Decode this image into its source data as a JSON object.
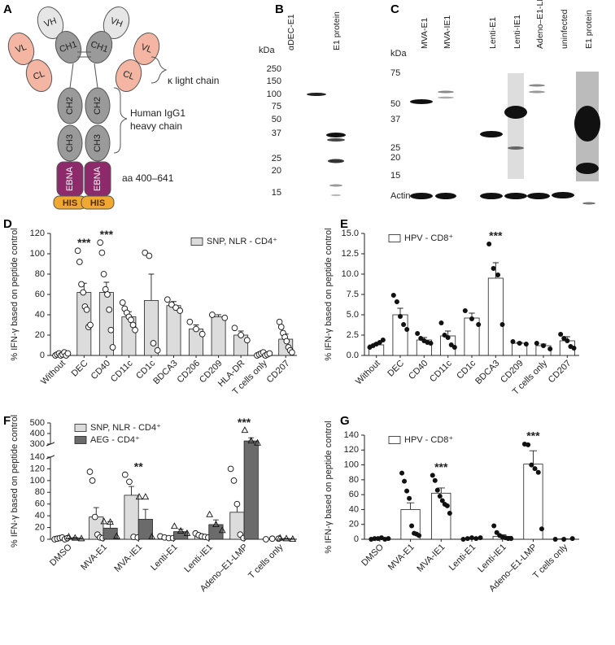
{
  "diagram": {
    "panel_label": "A",
    "domains": {
      "vh": "VH",
      "vl": "VL",
      "ch1": "CH1",
      "cl": "CL",
      "ch2": "CH2",
      "ch3": "CH3",
      "ebna": "EBNA",
      "his": "HIS"
    },
    "light_chain": "κ light chain",
    "heavy_chain": [
      "Human IgG1",
      "heavy chain"
    ],
    "fragment": "aa 400–641"
  },
  "blot_b": {
    "panel_label": "B",
    "unit": "kDa",
    "markers": [
      250,
      150,
      100,
      75,
      50,
      37,
      25,
      20,
      15
    ],
    "lanes": [
      "αDEC-E1",
      "E1 protein"
    ]
  },
  "blot_c": {
    "panel_label": "C",
    "unit": "kDa",
    "markers": [
      75,
      50,
      37,
      25,
      20,
      15
    ],
    "loading": "Actin",
    "lanes": [
      "MVA-E1",
      "MVA-IE1",
      "Lenti-E1",
      "Lenti-IE1",
      "Adeno–E1-LMP",
      "uninfected",
      "E1 protein"
    ]
  },
  "chart_data": [
    {
      "type": "bar",
      "panel_label": "D",
      "y_label": "% IFN-γ based on peptide control",
      "categories": [
        "Without",
        "DEC",
        "CD40",
        "CD11c",
        "CD1c",
        "BDCA3",
        "CD206",
        "CD209",
        "HLA-DR",
        "T cells only",
        "CD207"
      ],
      "series": [
        {
          "name": "SNP, NLR - CD4⁺",
          "color": "#dcdcdc",
          "marker": "open-circle",
          "values": [
            1,
            62,
            62,
            38,
            54,
            49,
            26,
            38,
            20,
            2,
            16
          ],
          "errors": [
            1,
            9,
            10,
            5,
            26,
            4,
            4,
            2,
            4,
            1,
            5
          ],
          "points": [
            [
              0,
              1,
              2,
              0,
              1,
              3,
              0,
              2
            ],
            [
              103,
              92,
              70,
              62,
              48,
              45,
              28,
              30
            ],
            [
              111,
              101,
              80,
              65,
              60,
              45,
              25,
              8
            ],
            [
              52,
              46,
              42,
              38,
              35,
              30,
              25
            ],
            [
              101,
              98,
              12,
              5
            ],
            [
              55,
              50,
              47,
              44
            ],
            [
              33,
              26,
              21
            ],
            [
              40,
              37
            ],
            [
              27,
              20,
              15
            ],
            [
              0,
              1,
              2,
              3,
              0,
              1,
              2
            ],
            [
              33,
              28,
              22,
              18,
              14,
              8,
              5,
              3
            ]
          ]
        }
      ],
      "annotations": [
        {
          "text": "***",
          "category": "DEC"
        },
        {
          "text": "***",
          "category": "CD40"
        }
      ],
      "ylim": [
        0,
        120
      ],
      "yticks": [
        0,
        20,
        40,
        60,
        80,
        100,
        120
      ],
      "legend": "upper right"
    },
    {
      "type": "bar",
      "panel_label": "E",
      "y_label": "% IFN-γ based on peptide control",
      "categories": [
        "Without",
        "DEC",
        "CD40",
        "CD11c",
        "CD1c",
        "BDCA3",
        "CD209",
        "T cells only",
        "CD207"
      ],
      "series": [
        {
          "name": "HPV - CD8⁺",
          "color": "#ffffff",
          "marker": "filled-circle",
          "values": [
            1.3,
            5.0,
            1.9,
            2.4,
            4.6,
            9.5,
            1.5,
            1.2,
            1.8
          ],
          "errors": [
            0.2,
            0.8,
            0.3,
            0.6,
            0.6,
            1.9,
            0.1,
            0.2,
            0.5
          ],
          "points": [
            [
              1.0,
              1.2,
              1.4,
              1.6,
              1.9
            ],
            [
              7.4,
              6.6,
              4.8,
              3.8,
              3.2
            ],
            [
              2.7,
              2.1,
              1.8,
              1.6,
              1.5
            ],
            [
              4.0,
              2.5,
              2.2,
              1.3,
              1.0
            ],
            [
              5.5,
              4.5,
              3.8
            ],
            [
              13.7,
              10.7,
              9.9,
              3.8
            ],
            [
              1.7,
              1.5,
              1.4
            ],
            [
              1.5,
              1.2,
              0.8
            ],
            [
              2.6,
              2.1,
              1.8,
              1.1,
              0.9
            ]
          ]
        }
      ],
      "annotations": [
        {
          "text": "***",
          "category": "BDCA3"
        }
      ],
      "ylim": [
        0,
        15
      ],
      "yticks": [
        {
          "value": 0,
          "label": "0.0"
        },
        2.5,
        {
          "value": 5,
          "label": "5.0"
        },
        7.5,
        {
          "value": 10,
          "label": "10.0"
        },
        12.5,
        {
          "value": 15,
          "label": "15.0"
        }
      ],
      "legend": "upper left"
    },
    {
      "type": "bar",
      "panel_label": "F",
      "y_label": "% IFN-γ based on peptide control",
      "categories": [
        "DMSO",
        "MVA-E1",
        "MVA-IE1",
        "Lenti-E1",
        "Lenti-IE1",
        "Adeno–E1-LMP",
        "T cells only"
      ],
      "series": [
        {
          "name": "SNP, NLR - CD4⁺",
          "color": "#dcdcdc",
          "marker": "open-circle",
          "values": [
            1,
            38,
            75,
            3,
            6,
            46,
            0
          ],
          "errors": [
            0.5,
            16,
            15,
            1,
            1,
            16,
            0.5
          ],
          "points": [
            [
              0,
              1,
              2,
              3,
              0,
              2
            ],
            [
              115,
              100,
              38,
              8,
              3,
              2
            ],
            [
              110,
              98,
              4,
              3
            ],
            [
              5,
              3,
              2,
              2
            ],
            [
              10,
              7,
              5,
              4,
              3
            ],
            [
              120,
              100,
              60,
              8,
              2
            ],
            [
              0,
              1,
              1
            ]
          ]
        },
        {
          "name": "AEG - CD4⁺",
          "color": "#6b6b6b",
          "marker": "open-triangle",
          "values": [
            2,
            19,
            34,
            13,
            25,
            330,
            1
          ],
          "errors": [
            1,
            11,
            17,
            4,
            8,
            30,
            0.5
          ],
          "points": [
            [
              4,
              2,
              1
            ],
            [
              30,
              29,
              5
            ],
            [
              72,
              72,
              4
            ],
            [
              22,
              14,
              10
            ],
            [
              42,
              25,
              15
            ],
            [
              430,
              330,
              310
            ],
            [
              2,
              1,
              0
            ]
          ]
        }
      ],
      "annotations": [
        {
          "text": "**",
          "category": "MVA-IE1"
        },
        {
          "text": "***",
          "category": "Adeno–E1-LMP"
        }
      ],
      "ylim": [
        0,
        500
      ],
      "ybreak": [
        140,
        300
      ],
      "yticks": [
        0,
        20,
        40,
        60,
        80,
        100,
        120,
        140,
        300,
        400,
        500
      ],
      "legend": "upper left"
    },
    {
      "type": "bar",
      "panel_label": "G",
      "y_label": "% IFN-γ based on peptide control",
      "categories": [
        "DMSO",
        "MVA-E1",
        "MVA-IE1",
        "Lenti-E1",
        "Lenti-IE1",
        "Adeno–E1-LMP",
        "T cells only"
      ],
      "series": [
        {
          "name": "HPV - CD8⁺",
          "color": "#ffffff",
          "marker": "filled-circle",
          "values": [
            1,
            40,
            62,
            1,
            4,
            101,
            0.5
          ],
          "errors": [
            0.3,
            9,
            7,
            0.5,
            2,
            18,
            0.2
          ],
          "points": [
            [
              0,
              1,
              1,
              2,
              0,
              1
            ],
            [
              89,
              78,
              65,
              55,
              18,
              8,
              7,
              5
            ],
            [
              86,
              79,
              66,
              58,
              52,
              47,
              45,
              35
            ],
            [
              0,
              1,
              2,
              1,
              2
            ],
            [
              18,
              9,
              5,
              3,
              2,
              1,
              1
            ],
            [
              128,
              127,
              100,
              95,
              90,
              14
            ],
            [
              0,
              0,
              1
            ]
          ]
        }
      ],
      "annotations": [
        {
          "text": "***",
          "category": "MVA-IE1"
        },
        {
          "text": "***",
          "category": "Adeno–E1-LMP"
        }
      ],
      "ylim": [
        0,
        140
      ],
      "yticks": [
        0,
        20,
        40,
        60,
        80,
        100,
        120,
        140
      ],
      "legend": "upper left"
    }
  ]
}
